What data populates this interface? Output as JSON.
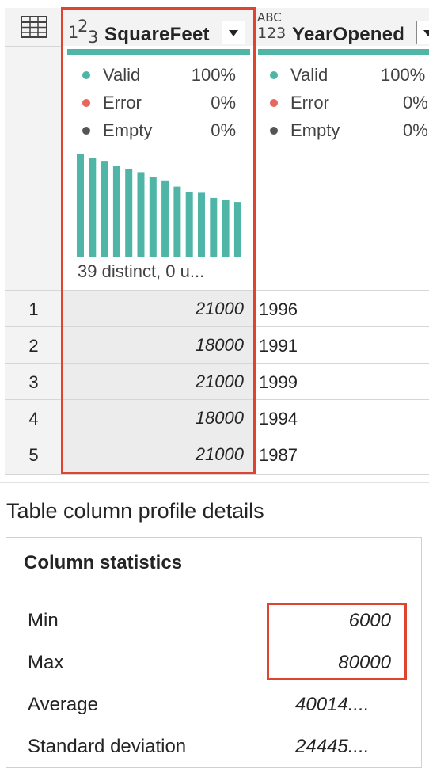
{
  "columns": [
    {
      "type_badge": "123-number",
      "name": "SquareFeet",
      "quality": [
        {
          "label": "Valid",
          "value": "100%",
          "color": "#4fb6a7"
        },
        {
          "label": "Error",
          "value": "0%",
          "color": "#e8665c"
        },
        {
          "label": "Empty",
          "value": "0%",
          "color": "#555555"
        }
      ],
      "histogram_levels": [
        1.0,
        0.96,
        0.93,
        0.88,
        0.85,
        0.82,
        0.77,
        0.74,
        0.68,
        0.63,
        0.62,
        0.57,
        0.55,
        0.53
      ],
      "distinct_text": "39 distinct, 0 u..."
    },
    {
      "type_badge": "abc-123-any",
      "name": "YearOpened",
      "quality": [
        {
          "label": "Valid",
          "value": "100%",
          "color": "#4fb6a7"
        },
        {
          "label": "Error",
          "value": "0%",
          "color": "#e8665c"
        },
        {
          "label": "Empty",
          "value": "0%",
          "color": "#555555"
        }
      ]
    }
  ],
  "rows": [
    {
      "index": "1",
      "square_feet": "21000",
      "year_opened": "1996"
    },
    {
      "index": "2",
      "square_feet": "18000",
      "year_opened": "1991"
    },
    {
      "index": "3",
      "square_feet": "21000",
      "year_opened": "1999"
    },
    {
      "index": "4",
      "square_feet": "18000",
      "year_opened": "1994"
    },
    {
      "index": "5",
      "square_feet": "21000",
      "year_opened": "1987"
    }
  ],
  "details": {
    "title": "Table column profile details",
    "stats_title": "Column statistics",
    "stats": [
      {
        "label": "Min",
        "value": "6000"
      },
      {
        "label": "Max",
        "value": "80000"
      },
      {
        "label": "Average",
        "value": "40014...."
      },
      {
        "label": "Standard deviation",
        "value": "24445...."
      }
    ]
  },
  "colors": {
    "accent_red": "#e0432e",
    "teal": "#4fb6a7"
  }
}
